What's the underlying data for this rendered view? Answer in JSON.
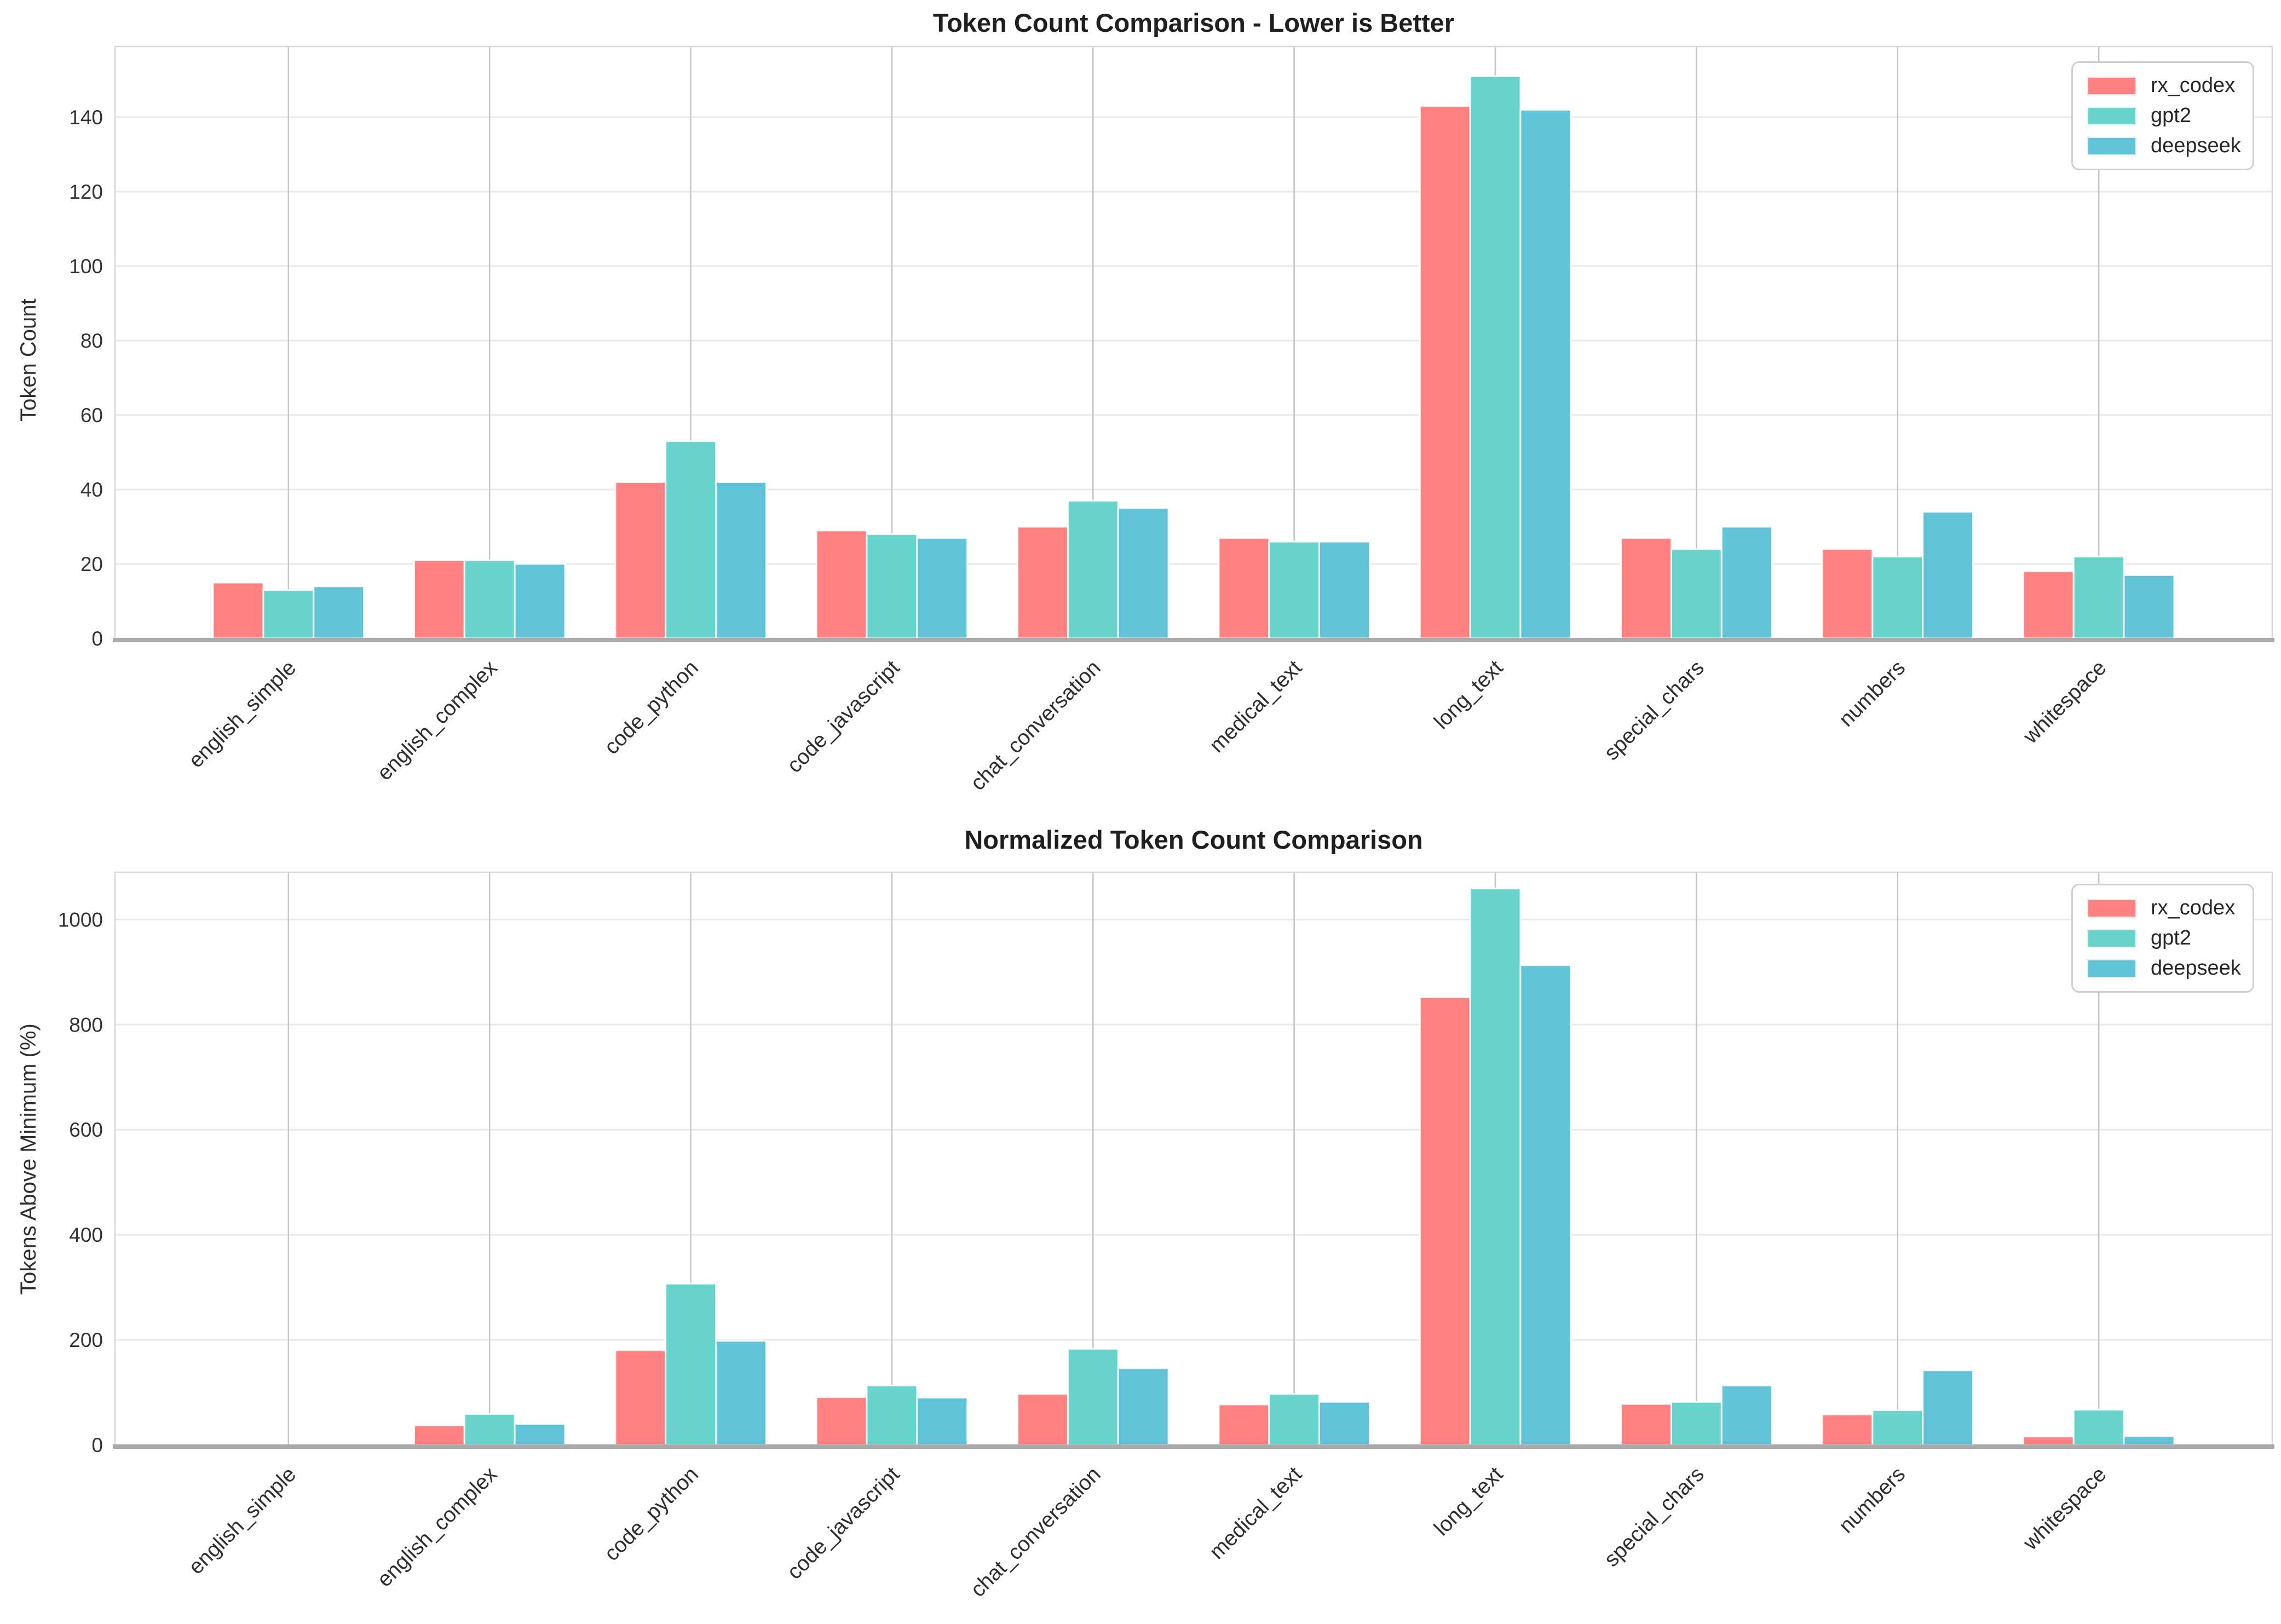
{
  "chart_data": [
    {
      "type": "bar",
      "title": "Token Count Comparison - Lower is Better",
      "xlabel": "",
      "ylabel": "Token Count",
      "categories": [
        "english_simple",
        "english_complex",
        "code_python",
        "code_javascript",
        "chat_conversation",
        "medical_text",
        "long_text",
        "special_chars",
        "numbers",
        "whitespace"
      ],
      "series": [
        {
          "name": "rx_codex",
          "color": "#FF8181",
          "values": [
            15,
            21,
            42,
            29,
            30,
            27,
            143,
            27,
            24,
            18
          ]
        },
        {
          "name": "gpt2",
          "color": "#68D4CC",
          "values": [
            13,
            21,
            53,
            28,
            37,
            26,
            151,
            24,
            22,
            22
          ]
        },
        {
          "name": "deepseek",
          "color": "#61C2D8",
          "values": [
            14,
            20,
            42,
            27,
            35,
            26,
            142,
            30,
            34,
            17
          ]
        }
      ],
      "y_ticks": [
        0,
        20,
        40,
        60,
        80,
        100,
        120,
        140
      ],
      "ylim": [
        0,
        159
      ],
      "grid": true,
      "legend_position": "upper right"
    },
    {
      "type": "bar",
      "title": "Normalized Token Count Comparison",
      "xlabel": "",
      "ylabel": "Tokens Above Minimum (%)",
      "categories": [
        "english_simple",
        "english_complex",
        "code_python",
        "code_javascript",
        "chat_conversation",
        "medical_text",
        "long_text",
        "special_chars",
        "numbers",
        "whitespace"
      ],
      "series": [
        {
          "name": "rx_codex",
          "color": "#FF8181",
          "values": [
            0,
            37,
            180,
            91,
            97,
            77,
            852,
            78,
            58,
            16
          ]
        },
        {
          "name": "gpt2",
          "color": "#68D4CC",
          "values": [
            0,
            59,
            307,
            113,
            183,
            97,
            1059,
            82,
            66,
            67
          ]
        },
        {
          "name": "deepseek",
          "color": "#61C2D8",
          "values": [
            0,
            40,
            198,
            90,
            146,
            82,
            913,
            113,
            142,
            17
          ]
        }
      ],
      "y_ticks": [
        0,
        200,
        400,
        600,
        800,
        1000
      ],
      "ylim": [
        0,
        1090
      ],
      "grid": true,
      "legend_position": "upper right"
    }
  ]
}
